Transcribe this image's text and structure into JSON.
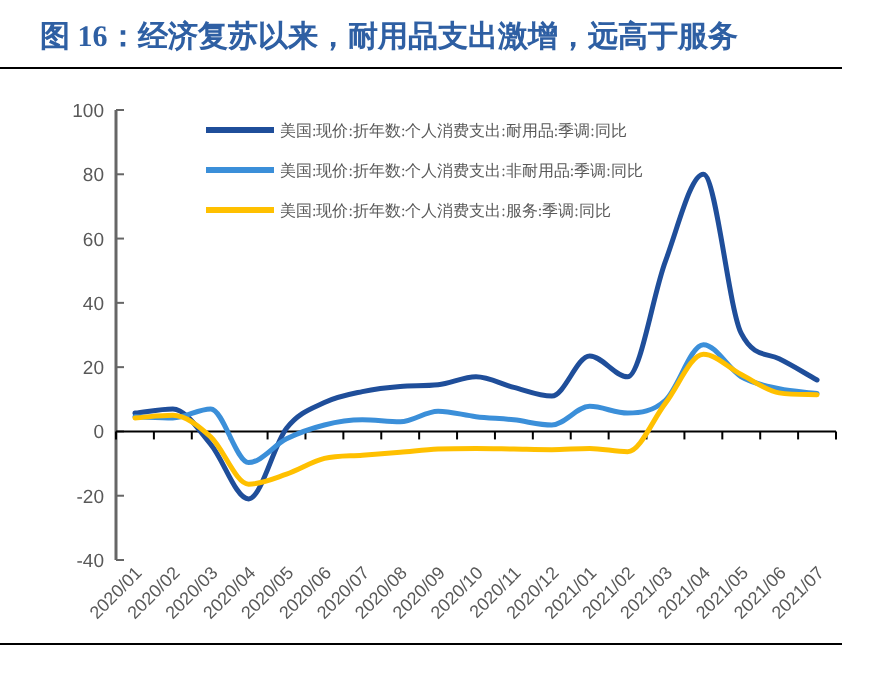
{
  "chart_data": {
    "type": "line",
    "title": "图 16：经济复苏以来，耐用品支出激增，远高于服务",
    "categories": [
      "2020/01",
      "2020/02",
      "2020/03",
      "2020/04",
      "2020/05",
      "2020/06",
      "2020/07",
      "2020/08",
      "2020/09",
      "2020/10",
      "2020/11",
      "2020/12",
      "2021/01",
      "2021/02",
      "2021/03",
      "2021/04",
      "2021/05",
      "2021/06",
      "2021/07"
    ],
    "series": [
      {
        "name": "美国:现价:折年数:个人消费支出:耐用品:季调:同比",
        "color": "#1f4e9a",
        "values": [
          5.7,
          7,
          -4,
          -21,
          1,
          9,
          12.4,
          14,
          14.5,
          17,
          13.7,
          11,
          23.5,
          17,
          53,
          80,
          30.5,
          22.6,
          16
        ]
      },
      {
        "name": "美国:现价:折年数:个人消费支出:非耐用品:季调:同比",
        "color": "#3b8fd9",
        "values": [
          4.6,
          4.2,
          7,
          -9.7,
          -2.3,
          2,
          3.6,
          3,
          6.3,
          4.6,
          3.6,
          2,
          7.8,
          5.7,
          9.7,
          27,
          17,
          13.3,
          11.8
        ]
      },
      {
        "name": "美国:现价:折年数:个人消费支出:服务:季调:同比",
        "color": "#ffc000",
        "values": [
          4.2,
          5,
          -1.7,
          -16.4,
          -13.3,
          -8.4,
          -7.4,
          -6.5,
          -5.5,
          -5.3,
          -5.5,
          -5.7,
          -5.3,
          -6.3,
          8.8,
          24,
          17.7,
          12,
          11.4
        ]
      }
    ],
    "ylim": [
      -40,
      100
    ],
    "yticks": [
      -40,
      -20,
      0,
      20,
      40,
      60,
      80,
      100
    ],
    "legend": "top left"
  }
}
